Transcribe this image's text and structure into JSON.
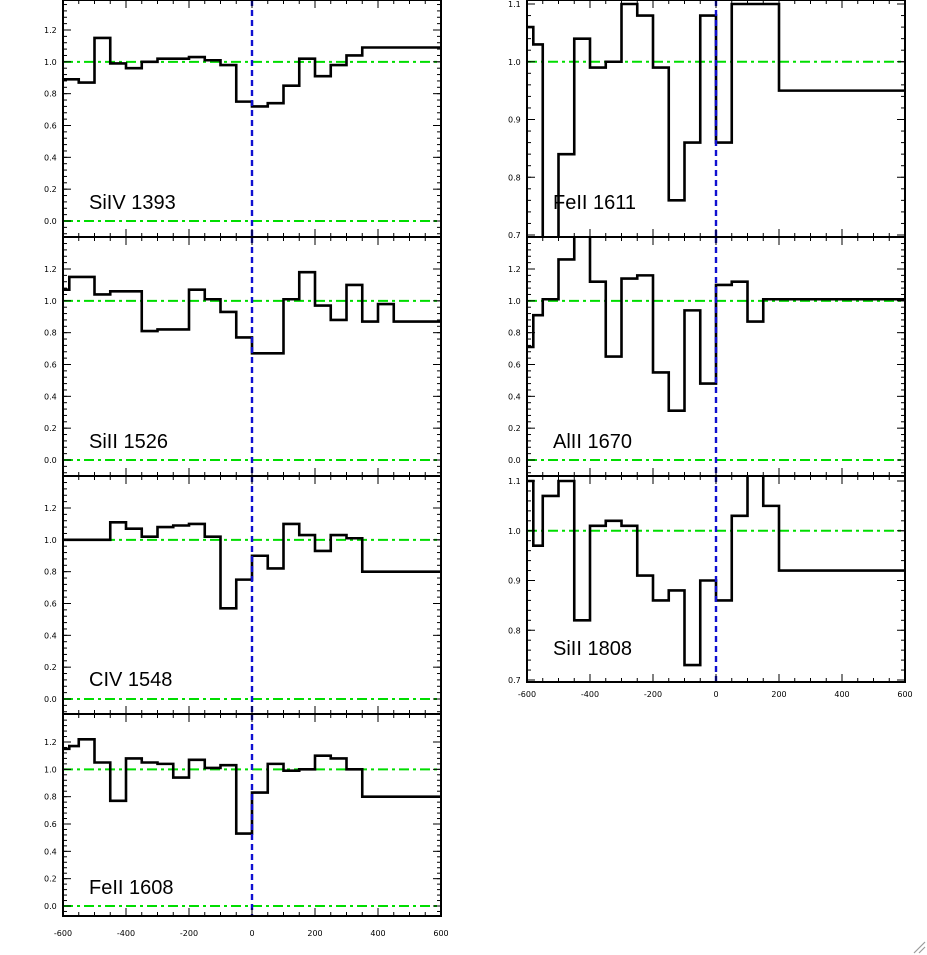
{
  "chart_data": [
    {
      "type": "line",
      "label": "SiIV 1393",
      "xlim": [
        -600,
        600
      ],
      "ylim": [
        -0.1,
        1.4
      ],
      "yticks": [
        0.0,
        0.2,
        0.4,
        0.6,
        0.8,
        1.0,
        1.2
      ],
      "ytick_labels": [
        "0.0",
        "0.2",
        "0.4",
        "0.6",
        "0.8",
        "1.0",
        "1.2"
      ],
      "reference_lines_y": [
        1.0,
        0.0
      ],
      "x": [
        -600,
        -550,
        -500,
        -450,
        -400,
        -350,
        -300,
        -250,
        -200,
        -150,
        -100,
        -50,
        0,
        50,
        100,
        150,
        200,
        250,
        300,
        350,
        400,
        450,
        500,
        550
      ],
      "y": [
        0.89,
        0.87,
        1.15,
        0.99,
        0.96,
        1.0,
        1.02,
        1.02,
        1.03,
        1.01,
        0.98,
        0.75,
        0.72,
        0.74,
        0.85,
        1.02,
        0.91,
        0.98,
        1.04,
        1.09,
        1.09,
        1.09,
        1.09,
        1.09
      ]
    },
    {
      "type": "line",
      "label": "SiII 1526",
      "xlim": [
        -600,
        600
      ],
      "ylim": [
        -0.1,
        1.4
      ],
      "yticks": [
        0.0,
        0.2,
        0.4,
        0.6,
        0.8,
        1.0,
        1.2
      ],
      "ytick_labels": [
        "0.0",
        "0.2",
        "0.4",
        "0.6",
        "0.8",
        "1.0",
        "1.2"
      ],
      "reference_lines_y": [
        1.0,
        0.0
      ],
      "x": [
        -600,
        -580,
        -550,
        -500,
        -450,
        -400,
        -350,
        -300,
        -250,
        -200,
        -150,
        -100,
        -50,
        0,
        50,
        100,
        150,
        200,
        250,
        300,
        350,
        400,
        450,
        500,
        550,
        580
      ],
      "y": [
        1.07,
        1.15,
        1.15,
        1.04,
        1.06,
        1.06,
        0.81,
        0.82,
        0.82,
        1.07,
        1.01,
        0.93,
        0.77,
        0.67,
        0.67,
        1.01,
        1.18,
        0.97,
        0.88,
        1.1,
        0.87,
        0.98,
        0.87,
        0.87,
        0.87,
        0.87
      ]
    },
    {
      "type": "line",
      "label": "CIV 1548",
      "xlim": [
        -600,
        600
      ],
      "ylim": [
        -0.1,
        1.4
      ],
      "yticks": [
        0.0,
        0.2,
        0.4,
        0.6,
        0.8,
        1.0,
        1.2
      ],
      "ytick_labels": [
        "0.0",
        "0.2",
        "0.4",
        "0.6",
        "0.8",
        "1.0",
        "1.2"
      ],
      "reference_lines_y": [
        1.0,
        0.0
      ],
      "x": [
        -600,
        -550,
        -500,
        -450,
        -400,
        -350,
        -300,
        -250,
        -200,
        -150,
        -100,
        -50,
        0,
        50,
        100,
        150,
        200,
        250,
        300,
        350,
        400,
        450,
        500,
        550
      ],
      "y": [
        1.0,
        1.0,
        1.0,
        1.11,
        1.07,
        1.02,
        1.08,
        1.09,
        1.1,
        1.02,
        0.57,
        0.75,
        0.9,
        0.82,
        1.1,
        1.03,
        0.93,
        1.03,
        1.01,
        0.8,
        0.8,
        0.8,
        0.8,
        0.8
      ]
    },
    {
      "type": "line",
      "label": "FeII 1608",
      "xlim": [
        -600,
        600
      ],
      "ylim": [
        -0.1,
        1.4
      ],
      "yticks": [
        0.0,
        0.2,
        0.4,
        0.6,
        0.8,
        1.0,
        1.2
      ],
      "ytick_labels": [
        "0.0",
        "0.2",
        "0.4",
        "0.6",
        "0.8",
        "1.0",
        "1.2"
      ],
      "reference_lines_y": [
        1.0,
        0.0
      ],
      "x": [
        -600,
        -580,
        -550,
        -500,
        -450,
        -400,
        -350,
        -300,
        -250,
        -200,
        -150,
        -100,
        -50,
        0,
        50,
        100,
        150,
        200,
        250,
        300,
        350,
        400,
        450,
        500,
        550,
        580
      ],
      "y": [
        1.15,
        1.17,
        1.22,
        1.05,
        0.77,
        1.08,
        1.05,
        1.04,
        0.94,
        1.07,
        1.01,
        1.03,
        0.53,
        0.83,
        1.04,
        0.99,
        1.0,
        1.1,
        1.08,
        1.0,
        0.8,
        0.8,
        0.8,
        0.8,
        0.8,
        0.8
      ]
    },
    {
      "type": "line",
      "label": "FeII 1611",
      "xlim": [
        -600,
        600
      ],
      "ylim": [
        0.7,
        1.1
      ],
      "yticks": [
        0.7,
        0.8,
        0.9,
        1.0,
        1.1
      ],
      "ytick_labels": [
        "0.7",
        "0.8",
        "0.9",
        "1.0",
        "1.1"
      ],
      "reference_lines_y": [
        1.0
      ],
      "x": [
        -600,
        -580,
        -550,
        -500,
        -450,
        -400,
        -350,
        -300,
        -250,
        -200,
        -150,
        -100,
        -50,
        0,
        50,
        100,
        150,
        200,
        250,
        300,
        350,
        400,
        450,
        500,
        550,
        580
      ],
      "y": [
        1.06,
        1.03,
        0.62,
        0.84,
        1.04,
        0.99,
        1.0,
        1.1,
        1.08,
        0.99,
        0.76,
        0.86,
        1.08,
        0.86,
        1.1,
        1.1,
        1.1,
        0.95,
        0.95,
        0.95,
        0.95,
        0.95,
        0.95,
        0.95,
        0.95,
        0.95
      ]
    },
    {
      "type": "line",
      "label": "AlII 1670",
      "xlim": [
        -600,
        600
      ],
      "ylim": [
        -0.1,
        1.4
      ],
      "yticks": [
        0.0,
        0.2,
        0.4,
        0.6,
        0.8,
        1.0,
        1.2
      ],
      "ytick_labels": [
        "0.0",
        "0.2",
        "0.4",
        "0.6",
        "0.8",
        "1.0",
        "1.2"
      ],
      "reference_lines_y": [
        1.0,
        0.0
      ],
      "x": [
        -600,
        -580,
        -550,
        -500,
        -450,
        -400,
        -350,
        -300,
        -250,
        -200,
        -150,
        -100,
        -50,
        0,
        50,
        100,
        150,
        200,
        250,
        300,
        350,
        400,
        450,
        500,
        550,
        580
      ],
      "y": [
        0.71,
        0.91,
        1.01,
        1.26,
        1.5,
        1.12,
        0.65,
        1.14,
        1.16,
        0.55,
        0.31,
        0.94,
        0.48,
        1.1,
        1.12,
        0.87,
        1.01,
        1.01,
        1.01,
        1.01,
        1.01,
        1.01,
        1.01,
        1.01,
        1.01,
        1.01
      ]
    },
    {
      "type": "line",
      "label": "SiII 1808",
      "xlim": [
        -600,
        600
      ],
      "ylim": [
        0.7,
        1.1
      ],
      "yticks": [
        0.7,
        0.8,
        0.9,
        1.0,
        1.1
      ],
      "ytick_labels": [
        "0.7",
        "0.8",
        "0.9",
        "1.0",
        "1.1"
      ],
      "reference_lines_y": [
        1.0
      ],
      "x": [
        -600,
        -580,
        -550,
        -500,
        -450,
        -400,
        -350,
        -300,
        -250,
        -200,
        -150,
        -100,
        -50,
        0,
        50,
        100,
        150,
        200,
        250,
        300,
        350,
        400,
        450,
        500,
        550,
        580
      ],
      "y": [
        1.1,
        0.97,
        1.07,
        1.1,
        0.82,
        1.01,
        1.02,
        1.01,
        0.91,
        0.86,
        0.88,
        0.73,
        0.9,
        0.86,
        1.03,
        1.12,
        1.05,
        0.92,
        0.92,
        0.92,
        0.92,
        0.92,
        0.92,
        0.92,
        0.92,
        0.92
      ]
    }
  ],
  "x_axis": {
    "range": [
      -600,
      600
    ],
    "ticks": [
      -600,
      -400,
      -200,
      0,
      200,
      400,
      600
    ],
    "tick_labels": [
      "-600",
      "-400",
      "-200",
      "0",
      "200",
      "400",
      "600"
    ]
  },
  "colors": {
    "spectrum": "#000000",
    "continuum_guide": "#00dd00",
    "zero_velocity": "#1010d0"
  }
}
